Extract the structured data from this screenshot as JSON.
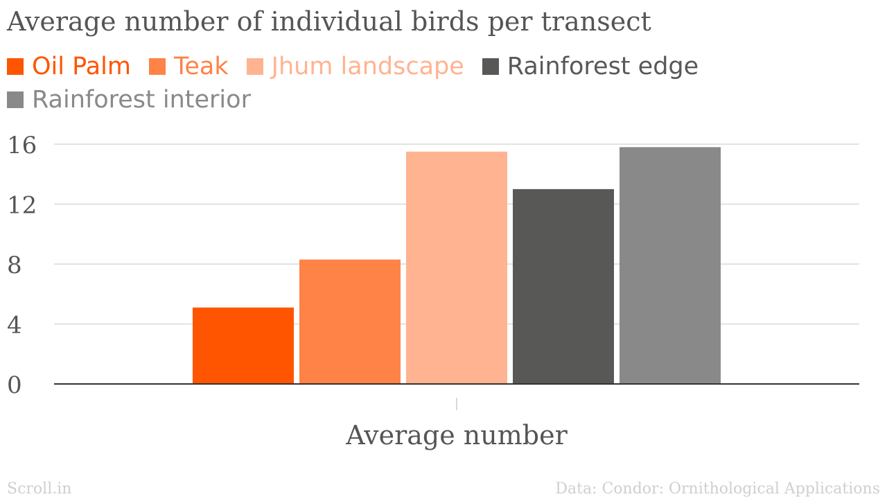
{
  "chart_data": {
    "type": "bar",
    "title": "Average number of individual birds per transect",
    "categories": [
      "Average number"
    ],
    "series": [
      {
        "name": "Oil Palm",
        "values": [
          5.1
        ],
        "color": "#ff5500"
      },
      {
        "name": "Teak",
        "values": [
          8.3
        ],
        "color": "#ff8247"
      },
      {
        "name": "Jhum landscape",
        "values": [
          15.5
        ],
        "color": "#ffb391"
      },
      {
        "name": "Rainforest edge",
        "values": [
          13.0
        ],
        "color": "#585856"
      },
      {
        "name": "Rainforest interior",
        "values": [
          15.8
        ],
        "color": "#898989"
      }
    ],
    "xlabel": "",
    "ylabel": "",
    "ylim": [
      0,
      16
    ],
    "yticks": [
      "0",
      "4",
      "8",
      "12",
      "16"
    ],
    "grid": true,
    "legend_position": "top-left"
  },
  "footer": {
    "brand": "Scroll.in",
    "source": "Data: Condor: Ornithological Applications"
  }
}
